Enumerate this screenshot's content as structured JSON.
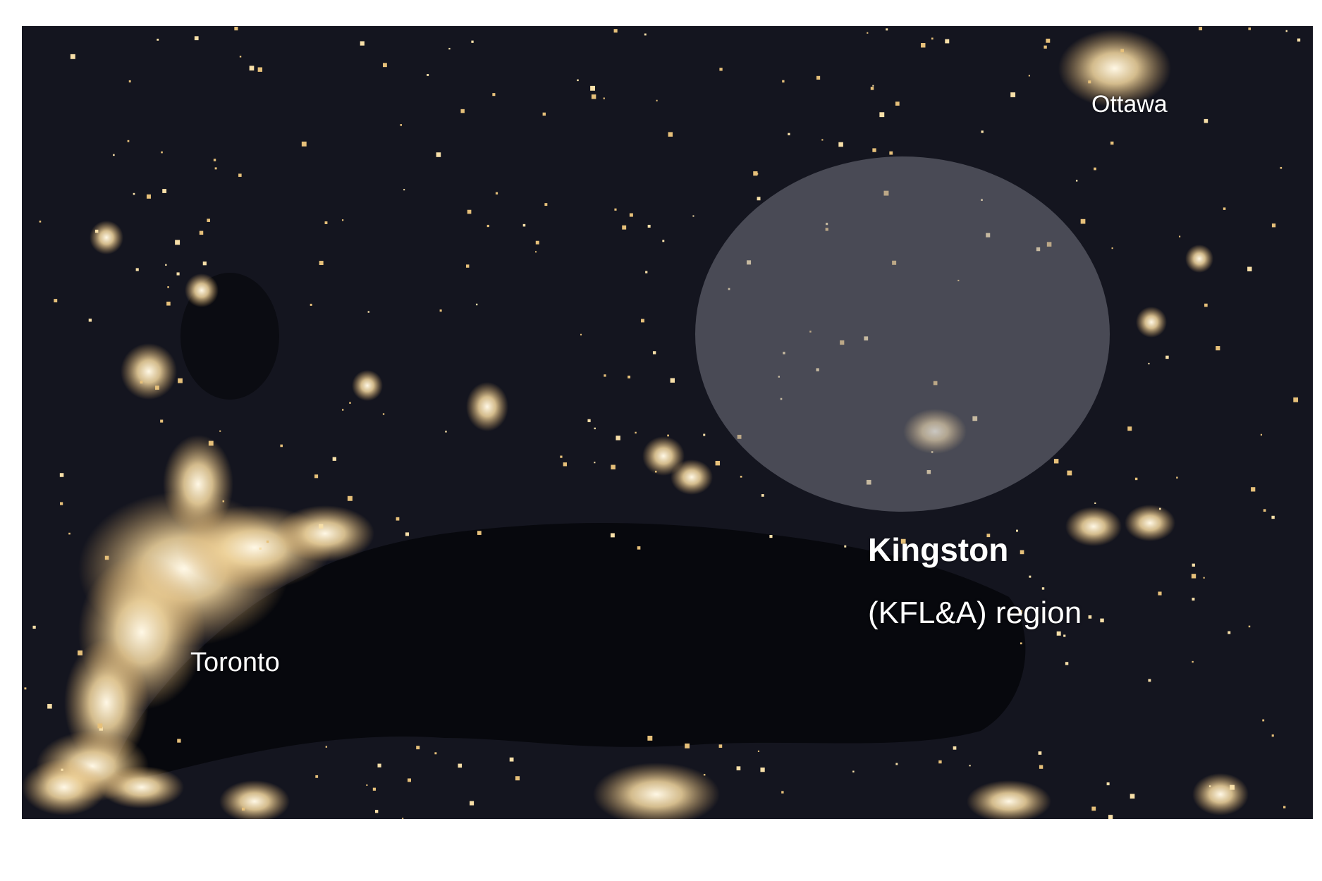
{
  "map": {
    "labels": {
      "toronto": "Toronto",
      "ottawa": "Ottawa",
      "kingston": "Kingston",
      "region": "(KFL&A) region"
    },
    "highlight": {
      "label": "Kingston (KFL&A) region",
      "fill": "#8a8c96",
      "opacity": 0.45
    },
    "colors": {
      "night_land": "#14151f",
      "water": "#07080d",
      "city_light": "#ffe9b8"
    }
  }
}
